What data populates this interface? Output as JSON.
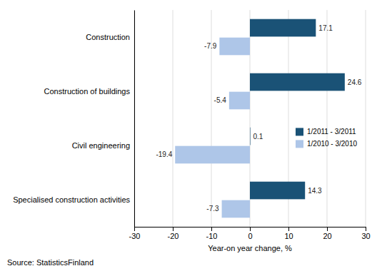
{
  "chart_data": {
    "type": "bar",
    "orientation": "horizontal",
    "categories": [
      "Construction",
      "Construction of buildings",
      "Civil engineering",
      "Specialised construction activities"
    ],
    "series": [
      {
        "name": "1/2011 - 3/2011",
        "color": "#1a5276",
        "values": [
          17.1,
          24.6,
          0.1,
          14.3
        ]
      },
      {
        "name": "1/2010 - 3/2010",
        "color": "#aec6e8",
        "values": [
          -7.9,
          -5.4,
          -19.4,
          -7.3
        ]
      }
    ],
    "xlabel": "Year-on year change, %",
    "xlim": [
      -30,
      30
    ],
    "xticks": [
      -30,
      -20,
      -10,
      0,
      10,
      20,
      30
    ],
    "grid": true,
    "legend": "right",
    "data_labels": true,
    "annotations": [
      "Source: StatisticsFinland"
    ]
  }
}
